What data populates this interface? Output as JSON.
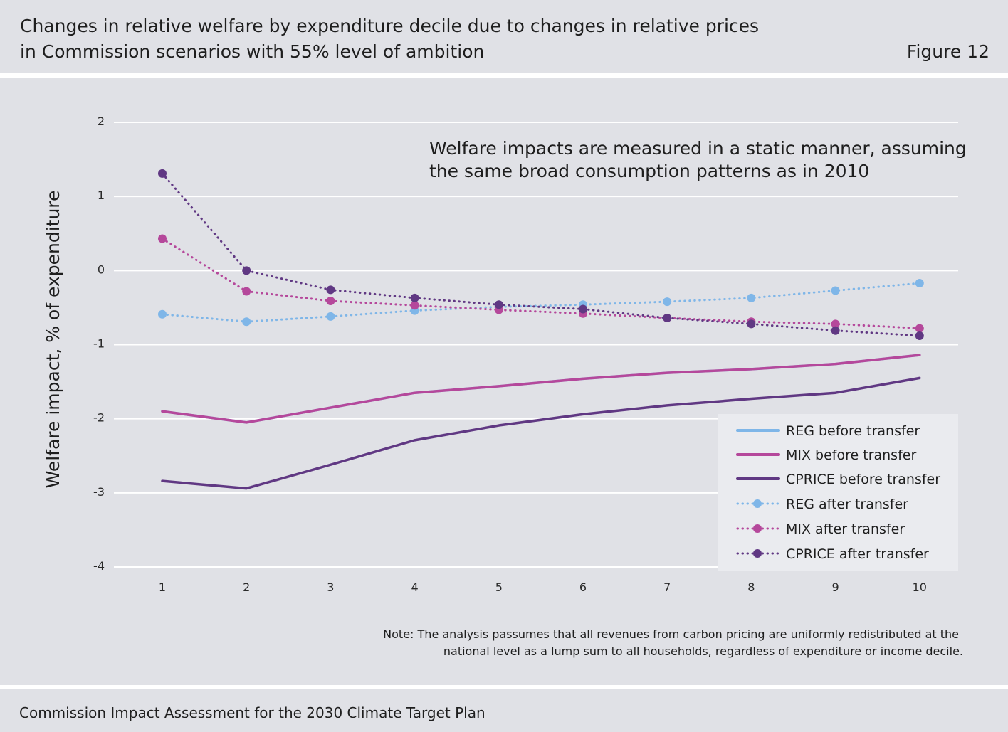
{
  "header": {
    "title_line1": "Changes in relative welfare by expenditure decile due to changes in relative prices",
    "title_line2": "in Commission scenarios with 55% level of ambition",
    "figure_label": "Figure 12"
  },
  "footer": {
    "text": "Commission Impact Assessment for the 2030 Climate Target Plan"
  },
  "colors": {
    "background": "#e0e1e6",
    "gridline": "#ffffff",
    "reg": "#7fb6e8",
    "mix": "#b5489b",
    "cprice": "#603883"
  },
  "chart_data": {
    "type": "line",
    "x": [
      1,
      2,
      3,
      4,
      5,
      6,
      7,
      8,
      9,
      10
    ],
    "ylabel": "Welfare impact, % of expenditure",
    "xlabel": "",
    "ylim": [
      -4,
      2
    ],
    "yticks": [
      2,
      1,
      0,
      -1,
      -2,
      -3,
      -4
    ],
    "ytick_labels": [
      "2",
      "1",
      "0",
      "-1",
      "-2",
      "-3",
      "-4"
    ],
    "xtick_labels": [
      "1",
      "2",
      "3",
      "4",
      "5",
      "6",
      "7",
      "8",
      "9",
      "10"
    ],
    "grid": true,
    "legend_position": "bottom-right",
    "annotation_line1": "Welfare impacts are measured in a static manner, assuming",
    "annotation_line2": "the same broad consumption patterns as in 2010",
    "note_line1": "Note: The analysis passumes that all revenues from carbon pricing are uniformly redistributed at the",
    "note_line2": "national level as a lump sum to all households, regardless of expenditure or income decile.",
    "series": [
      {
        "name": "REG before transfer",
        "color": "#7fb6e8",
        "style": "solid",
        "markers": false,
        "values": [
          -1.9,
          -2.05,
          -1.85,
          -1.65,
          -1.56,
          -1.46,
          -1.38,
          -1.33,
          -1.26,
          -1.14
        ]
      },
      {
        "name": "MIX before transfer",
        "color": "#b5489b",
        "style": "solid",
        "markers": false,
        "values": [
          -1.9,
          -2.05,
          -1.85,
          -1.65,
          -1.56,
          -1.46,
          -1.38,
          -1.33,
          -1.26,
          -1.14
        ]
      },
      {
        "name": "CPRICE before transfer",
        "color": "#603883",
        "style": "solid",
        "markers": false,
        "values": [
          -2.84,
          -2.94,
          -2.62,
          -2.29,
          -2.09,
          -1.94,
          -1.82,
          -1.73,
          -1.65,
          -1.45
        ]
      },
      {
        "name": "REG after transfer",
        "color": "#7fb6e8",
        "style": "dotted",
        "markers": true,
        "values": [
          -0.59,
          -0.69,
          -0.62,
          -0.54,
          -0.49,
          -0.46,
          -0.42,
          -0.37,
          -0.27,
          -0.17
        ]
      },
      {
        "name": "MIX after transfer",
        "color": "#b5489b",
        "style": "dotted",
        "markers": true,
        "values": [
          0.43,
          -0.28,
          -0.41,
          -0.47,
          -0.53,
          -0.58,
          -0.64,
          -0.69,
          -0.72,
          -0.78
        ]
      },
      {
        "name": "CPRICE after transfer",
        "color": "#603883",
        "style": "dotted",
        "markers": true,
        "values": [
          1.31,
          0.0,
          -0.26,
          -0.37,
          -0.46,
          -0.52,
          -0.64,
          -0.72,
          -0.81,
          -0.88
        ]
      }
    ]
  }
}
